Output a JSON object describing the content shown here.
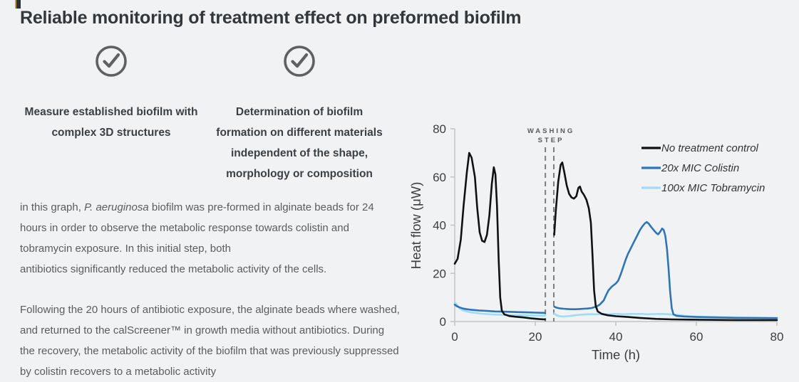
{
  "page": {
    "background": "#f0f2f4",
    "title": "Reliable monitoring of treatment effect on preformed biofilm"
  },
  "features": [
    {
      "icon": "check-circle",
      "icon_color": "#5f6062",
      "label": "Measure established biofilm with complex 3D structures"
    },
    {
      "icon": "check-circle",
      "icon_color": "#5f6062",
      "label": "Determination of biofilm formation on different materials independent of the shape, morphology or composition"
    }
  ],
  "paragraphs": [
    {
      "parts": [
        {
          "text": "in this graph, "
        },
        {
          "text": "P. aeruginosa",
          "italic": true
        },
        {
          "text": " biofilm was pre-formed in alginate beads for 24 hours in order to observe the metabolic response towards colistin and tobramycin exposure. In this initial step, both\nantibiotics significantly reduced the metabolic activity of the cells."
        }
      ]
    },
    {
      "parts": [
        {
          "text": "Following the 20 hours of antibiotic exposure, the alginate beads where washed, and returned to the calScreener™ in growth media without antibiotics. During the recovery, the metabolic activity of the biofilm that was previously suppressed by colistin recovers to a metabolic activity"
        }
      ]
    }
  ],
  "chart_data": {
    "type": "line",
    "title": "",
    "xlabel": "Time (h)",
    "ylabel": "Heat flow (μW)",
    "xlim": [
      0,
      80
    ],
    "ylim": [
      0,
      80
    ],
    "xticks": [
      0,
      20,
      40,
      60,
      80
    ],
    "yticks": [
      0,
      20,
      40,
      60,
      80
    ],
    "grid": false,
    "legend_position": "upper right",
    "axis_color": "#c3c3c3",
    "tick_text_color": "#3d3d3d",
    "annotation": {
      "label": "WASHING STEP",
      "lines_x": [
        22.5,
        24.6
      ],
      "text_color": "#595959",
      "line_color": "#7f7f7f"
    },
    "series": [
      {
        "name": "No treatment control",
        "color": "#111111",
        "segments": [
          [
            [
              0,
              24
            ],
            [
              0.7,
              26
            ],
            [
              1.5,
              34
            ],
            [
              2.2,
              48
            ],
            [
              3,
              62
            ],
            [
              3.6,
              70
            ],
            [
              4.2,
              68
            ],
            [
              5,
              60
            ],
            [
              5.6,
              47
            ],
            [
              6.2,
              37
            ],
            [
              6.8,
              33.5
            ],
            [
              7.4,
              33
            ],
            [
              8,
              36
            ],
            [
              8.6,
              44
            ],
            [
              9.2,
              57
            ],
            [
              9.7,
              64
            ],
            [
              10.1,
              61
            ],
            [
              10.5,
              48
            ],
            [
              10.9,
              26
            ],
            [
              11.3,
              10
            ],
            [
              11.7,
              4.5
            ],
            [
              12.3,
              3
            ],
            [
              13.5,
              2.3
            ],
            [
              15,
              2
            ],
            [
              17,
              1.7
            ],
            [
              19,
              1.3
            ],
            [
              21,
              1
            ],
            [
              22.4,
              0.9
            ]
          ],
          [
            [
              24.7,
              36
            ],
            [
              25.1,
              46
            ],
            [
              25.7,
              58
            ],
            [
              26.3,
              65
            ],
            [
              26.7,
              66
            ],
            [
              27.2,
              62
            ],
            [
              27.8,
              56.5
            ],
            [
              28.4,
              53
            ],
            [
              29,
              51.5
            ],
            [
              29.6,
              51
            ],
            [
              30.2,
              52
            ],
            [
              30.7,
              55.5
            ],
            [
              31.1,
              56
            ],
            [
              31.5,
              54
            ],
            [
              32.1,
              52.5
            ],
            [
              32.7,
              50.5
            ],
            [
              33.3,
              47
            ],
            [
              33.8,
              41
            ],
            [
              34.2,
              28
            ],
            [
              34.6,
              13
            ],
            [
              35,
              6.5
            ],
            [
              35.5,
              4.2
            ],
            [
              36.5,
              3.2
            ],
            [
              38,
              2.6
            ],
            [
              40,
              2.2
            ],
            [
              43,
              1.9
            ],
            [
              46,
              1.5
            ],
            [
              50,
              1.1
            ],
            [
              54,
              0.9
            ],
            [
              58,
              0.8
            ],
            [
              63,
              0.7
            ],
            [
              70,
              0.6
            ],
            [
              80,
              0.6
            ]
          ]
        ]
      },
      {
        "name": "20x MIC Colistin",
        "color": "#2e75b6",
        "segments": [
          [
            [
              0,
              7
            ],
            [
              0.5,
              6.4
            ],
            [
              1,
              6
            ],
            [
              2,
              5.4
            ],
            [
              3,
              5.1
            ],
            [
              4,
              4.9
            ],
            [
              6,
              4.6
            ],
            [
              8,
              4.4
            ],
            [
              10,
              4.2
            ],
            [
              12,
              4.1
            ],
            [
              14,
              4
            ],
            [
              16,
              3.9
            ],
            [
              18,
              3.8
            ],
            [
              20,
              3.7
            ],
            [
              22.4,
              3.6
            ]
          ],
          [
            [
              24.7,
              6.2
            ],
            [
              25.2,
              5.8
            ],
            [
              26,
              5.5
            ],
            [
              27,
              5.3
            ],
            [
              28,
              5.2
            ],
            [
              29,
              5.1
            ],
            [
              30,
              5.1
            ],
            [
              31,
              5.2
            ],
            [
              32,
              5.3
            ],
            [
              33,
              5.4
            ],
            [
              34,
              5.6
            ],
            [
              35,
              6.1
            ],
            [
              36,
              7
            ],
            [
              37,
              8.8
            ],
            [
              37.6,
              11
            ],
            [
              38.2,
              13
            ],
            [
              39,
              14.5
            ],
            [
              40,
              15.8
            ],
            [
              40.6,
              17
            ],
            [
              41.2,
              19.5
            ],
            [
              41.8,
              22.5
            ],
            [
              42.4,
              25.5
            ],
            [
              43,
              28
            ],
            [
              43.6,
              30
            ],
            [
              44.2,
              32
            ],
            [
              44.8,
              34
            ],
            [
              45.4,
              36
            ],
            [
              46,
              38
            ],
            [
              46.6,
              39.5
            ],
            [
              47.2,
              40.7
            ],
            [
              47.7,
              41.3
            ],
            [
              48.2,
              40.6
            ],
            [
              48.8,
              39.2
            ],
            [
              49.4,
              38
            ],
            [
              50,
              36.8
            ],
            [
              50.5,
              36.2
            ],
            [
              51,
              37.2
            ],
            [
              51.5,
              38.6
            ],
            [
              51.9,
              38
            ],
            [
              52.3,
              35.5
            ],
            [
              52.7,
              30
            ],
            [
              53.1,
              22
            ],
            [
              53.5,
              12
            ],
            [
              53.9,
              5.5
            ],
            [
              54.3,
              3
            ],
            [
              55,
              2.4
            ],
            [
              57,
              2.1
            ],
            [
              60,
              1.9
            ],
            [
              65,
              1.7
            ],
            [
              70,
              1.5
            ],
            [
              75,
              1.45
            ],
            [
              80,
              1.4
            ]
          ]
        ]
      },
      {
        "name": "100x MIC Tobramycin",
        "color": "#9fdbf4",
        "segments": [
          [
            [
              0,
              8
            ],
            [
              0.4,
              7.3
            ],
            [
              0.8,
              6.3
            ],
            [
              1.3,
              5.3
            ],
            [
              2,
              4.7
            ],
            [
              3,
              4.2
            ],
            [
              4,
              3.8
            ],
            [
              6,
              3.4
            ],
            [
              8,
              3.1
            ],
            [
              10,
              2.9
            ],
            [
              12,
              2.8
            ],
            [
              14,
              2.7
            ],
            [
              16,
              2.6
            ],
            [
              18,
              2.55
            ],
            [
              20,
              2.5
            ],
            [
              22.4,
              2.45
            ]
          ],
          [
            [
              24.7,
              3.4
            ],
            [
              25.2,
              2.7
            ],
            [
              26,
              2.2
            ],
            [
              27,
              2.1
            ],
            [
              28,
              2.2
            ],
            [
              29,
              2.4
            ],
            [
              30,
              2.6
            ],
            [
              31,
              2.8
            ],
            [
              32,
              2.9
            ],
            [
              33,
              3
            ],
            [
              34,
              3
            ],
            [
              35,
              3
            ],
            [
              36,
              3.1
            ],
            [
              37,
              3
            ],
            [
              38,
              3
            ],
            [
              39,
              3.1
            ],
            [
              40,
              3.2
            ],
            [
              41,
              3.1
            ],
            [
              42,
              3
            ],
            [
              43,
              3.1
            ],
            [
              44,
              3.2
            ],
            [
              45,
              3.1
            ],
            [
              46,
              3.2
            ],
            [
              47,
              3.1
            ],
            [
              48,
              3
            ],
            [
              49,
              3.1
            ],
            [
              50,
              3.1
            ],
            [
              51,
              3.2
            ],
            [
              52,
              3.1
            ],
            [
              53,
              3
            ],
            [
              54,
              2.9
            ],
            [
              55,
              2.8
            ],
            [
              56,
              2.6
            ],
            [
              57,
              2.4
            ],
            [
              58,
              2.2
            ],
            [
              60,
              2
            ],
            [
              63,
              1.9
            ],
            [
              66,
              1.8
            ],
            [
              70,
              1.7
            ],
            [
              75,
              1.6
            ],
            [
              80,
              1.5
            ]
          ]
        ]
      }
    ]
  }
}
